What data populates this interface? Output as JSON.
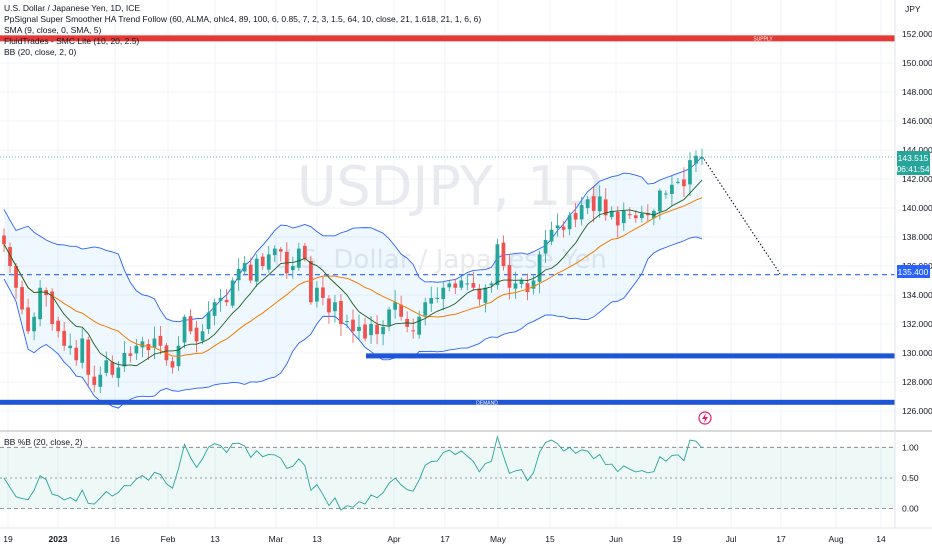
{
  "legend": {
    "line1": "U.S. Dollar / Japanese Yen, 1D, ICE",
    "line2": "PpSignal Super Smoother HA Trend Follow (60, ALMA, ohlc4, 89, 100, 6, 0.85, 7, 2, 3, 1.5, 64, 10, close, 21, 1.618, 21, 1, 6, 6)",
    "line3": "SMA (9, close, 0, SMA, 5)",
    "line4": "FluidTrades - SMC Lite  (10, 20, 2.5)",
    "line5": "BB (20, close, 2, 0)"
  },
  "currency_label": "JPY",
  "watermark": {
    "symbol": "USDJPY, 1D",
    "name": "U.S. Dollar / Japanese Yen"
  },
  "zone_labels": {
    "supply": "SUPPLY",
    "demand": "DEMAND"
  },
  "price_badges": {
    "last": "143.515",
    "countdown": "06:41:54",
    "level": "135.400"
  },
  "indicator_title": "BB %B (20, close, 2)",
  "colors": {
    "up": "#26a69a",
    "down": "#ef5350",
    "bb": "#2962ff",
    "sma": "#f57c00",
    "supply_zone": "#e53935",
    "demand_zone": "#1e55d6",
    "level_line": "#2962ff"
  },
  "chart_data": {
    "type": "candlestick",
    "y_axis": {
      "ticks": [
        126,
        128,
        130,
        132,
        134,
        136,
        138,
        140,
        142,
        144,
        146,
        148,
        150,
        152
      ],
      "labels": [
        "126.000",
        "128.000",
        "130.000",
        "132.000",
        "134.000",
        "136.000",
        "138.000",
        "140.000",
        "142.000",
        "144.000",
        "146.000",
        "148.000",
        "150.000",
        "152.000"
      ],
      "range": [
        125,
        153
      ]
    },
    "x_axis": {
      "labels": [
        "19",
        "2023",
        "16",
        "Feb",
        "13",
        "Mar",
        "13",
        "Apr",
        "17",
        "May",
        "15",
        "Jun",
        "19",
        "Jul",
        "17",
        "Aug",
        "14"
      ]
    },
    "levels": {
      "supply": 151.7,
      "demand_upper": 129.8,
      "demand_lower": 126.6,
      "dashed": 135.4,
      "last": 143.515
    },
    "close_path": [
      137.5,
      136,
      134.5,
      133,
      131.5,
      132.5,
      134.5,
      134,
      132,
      131.5,
      130.5,
      130.5,
      129.5,
      131,
      128.5,
      127.8,
      128.5,
      129.5,
      128.5,
      129,
      130,
      129.8,
      130.5,
      130.8,
      130.2,
      131,
      130.5,
      129.5,
      129,
      130.5,
      132.5,
      131.5,
      130.8,
      131.5,
      132.8,
      133.5,
      133.8,
      133.5,
      135,
      135.8,
      136.2,
      135,
      136.5,
      136,
      136.8,
      137.2,
      137,
      135.5,
      136,
      137.2,
      136.5,
      133.5,
      134.5,
      133.8,
      132.8,
      133.5,
      132,
      132.2,
      131.5,
      131.8,
      131,
      132,
      131.3,
      131.8,
      133,
      133.5,
      132.5,
      131.8,
      131.5,
      132.5,
      133.5,
      133.8,
      133.8,
      134.5,
      134.8,
      134.5,
      135,
      134.8,
      134.5,
      133.7,
      134.5,
      134.8,
      137.5,
      136,
      134.5,
      134.8,
      135,
      134.2,
      135,
      136.8,
      137.8,
      138.5,
      138.8,
      138.5,
      139.5,
      139.2,
      140.2,
      140.6,
      139.8,
      140.8,
      139.5,
      139.8,
      138.8,
      139.8,
      139.5,
      139.3,
      139.6,
      139.5,
      139.8,
      141.2,
      141,
      141.6,
      141.8,
      141.5,
      143.3,
      143.6,
      143.5
    ],
    "bbpctb": {
      "ticks": [
        0,
        0.5,
        1
      ],
      "labels": [
        "0.00",
        "0.50",
        "1.00"
      ],
      "range": [
        -0.3,
        1.25
      ]
    }
  }
}
